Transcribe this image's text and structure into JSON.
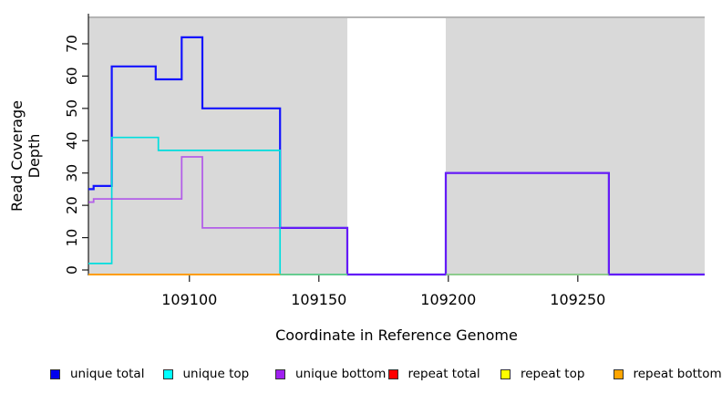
{
  "chart_data": {
    "type": "step",
    "title": "",
    "xlabel": "Coordinate in Reference Genome",
    "ylabel": "Read Coverage Depth",
    "xlim": [
      109061,
      109299
    ],
    "ylim": [
      0,
      76
    ],
    "grid": false,
    "xticks": [
      109100,
      109150,
      109200,
      109250
    ],
    "yticks": [
      0,
      10,
      20,
      30,
      40,
      50,
      60,
      70
    ],
    "background": {
      "plot_bg": "#ffffff",
      "coverage_span_color": "#d9d9d9",
      "coverage_spans": [
        [
          109061,
          109161
        ],
        [
          109199,
          109299
        ]
      ],
      "gap_span": [
        109161,
        109199
      ],
      "top_border_color": "#9c9c9c",
      "axis_color": "#1a1a1a"
    },
    "series": [
      {
        "name": "unique total",
        "color": "#1414ff",
        "width": 2.2,
        "opacity": 1,
        "points": [
          [
            109061,
            25
          ],
          [
            109063,
            26
          ],
          [
            109070,
            63
          ],
          [
            109087,
            59
          ],
          [
            109097,
            72
          ],
          [
            109105,
            50
          ],
          [
            109135,
            13
          ],
          [
            109161,
            0
          ],
          [
            109199,
            30
          ],
          [
            109262,
            0
          ]
        ],
        "end": 109299
      },
      {
        "name": "unique top",
        "color": "#00dede",
        "width": 1.7,
        "opacity": 1,
        "points": [
          [
            109061,
            2
          ],
          [
            109070,
            41
          ],
          [
            109088,
            37
          ],
          [
            109135,
            0
          ]
        ],
        "end": 109161
      },
      {
        "name": "unique bottom",
        "color": "#a020f0",
        "width": 1.8,
        "opacity": 0.66,
        "points": [
          [
            109061,
            21
          ],
          [
            109063,
            22
          ],
          [
            109097,
            35
          ],
          [
            109105,
            13
          ],
          [
            109161,
            0
          ],
          [
            109199,
            30
          ],
          [
            109262,
            0
          ]
        ],
        "end": 109299
      },
      {
        "name": "repeat total",
        "color": "#ff0000",
        "width": 1.4,
        "opacity": 1,
        "points": [
          [
            109061,
            0
          ]
        ],
        "end": 109135
      },
      {
        "name": "repeat top",
        "color": "#ffff00",
        "width": 1.4,
        "opacity": 1,
        "points": [
          [
            109061,
            0
          ]
        ],
        "end": 109135
      },
      {
        "name": "repeat bottom",
        "color": "#ff9d00",
        "width": 2.0,
        "opacity": 1,
        "points": [
          [
            109061,
            0
          ]
        ],
        "end": 109135
      },
      {
        "name": "zero coverage marker left",
        "color": "#76c776",
        "width": 1.5,
        "opacity": 1,
        "points": [
          [
            109135,
            0
          ]
        ],
        "end": 109161
      },
      {
        "name": "zero coverage marker right",
        "color": "#76c776",
        "width": 1.5,
        "opacity": 1,
        "points": [
          [
            109199,
            0
          ]
        ],
        "end": 109262
      }
    ],
    "legend": {
      "position": "bottom",
      "items": [
        {
          "label": "unique total",
          "color": "#0000ee"
        },
        {
          "label": "unique top",
          "color": "#00ffff"
        },
        {
          "label": "unique bottom",
          "color": "#a020f0"
        },
        {
          "label": "repeat total",
          "color": "#ff0000"
        },
        {
          "label": "repeat top",
          "color": "#ffff00"
        },
        {
          "label": "repeat bottom",
          "color": "#ffa500"
        }
      ]
    }
  }
}
